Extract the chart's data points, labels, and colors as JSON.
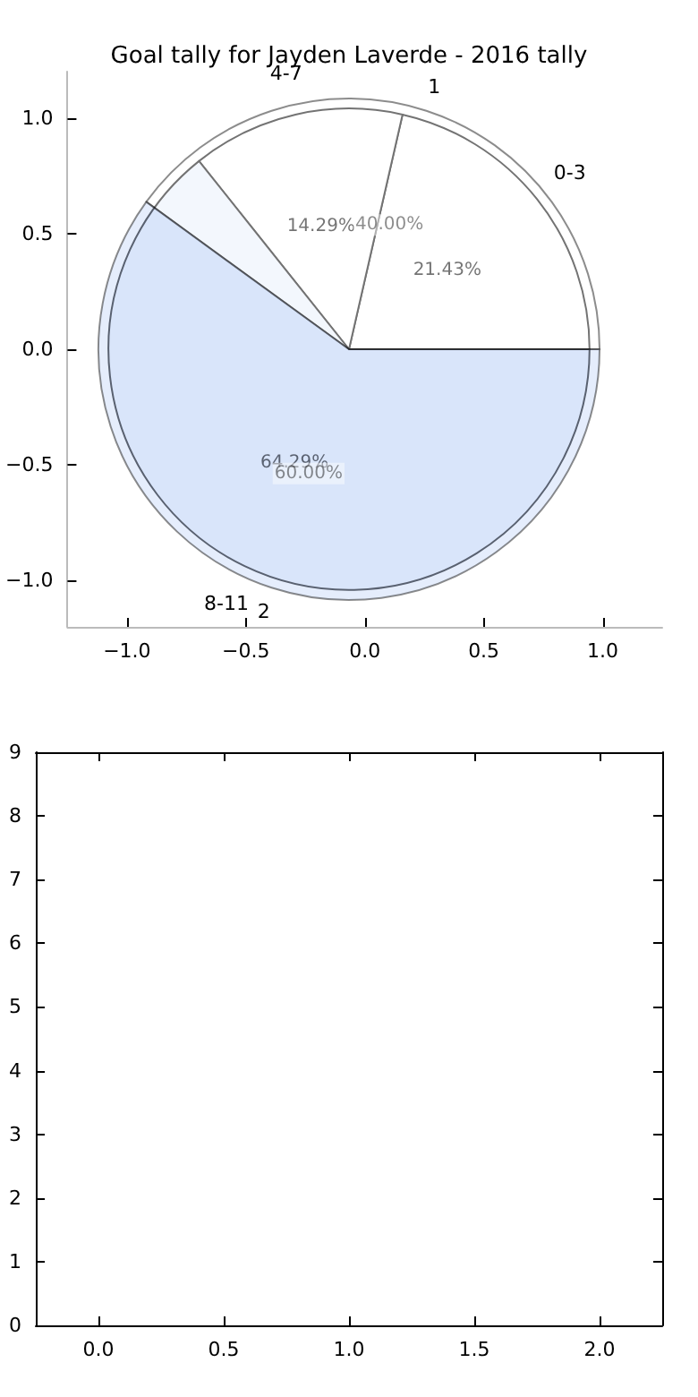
{
  "chart_data": [
    {
      "type": "pie",
      "title": "Goal tally for Jayden Laverde - 2016 tally",
      "categories": [
        "1",
        "2"
      ],
      "values": [
        40,
        60
      ],
      "colors": [
        "#ffffff",
        "#c6d8f8"
      ],
      "value_labels": [
        "40.00%",
        "60.00%"
      ]
    },
    {
      "type": "pie",
      "categories": [
        "0-3",
        "4-7",
        "8-11"
      ],
      "values": [
        21.43,
        14.29,
        64.29
      ],
      "colors": [
        "#ffffff",
        "#ffffff",
        "#eaf0fc"
      ],
      "value_labels": [
        "21.43%",
        "14.29%",
        "64.29%"
      ]
    },
    {
      "type": "scatter",
      "xlim": [
        -1.25,
        1.25
      ],
      "ylim": [
        -1.2,
        1.2
      ],
      "xticks": [
        {
          "value": -1,
          "label": "−1.0"
        },
        {
          "value": -0.5,
          "label": "−0.5"
        },
        {
          "value": 0,
          "label": "0.0"
        },
        {
          "value": 0.5,
          "label": "0.5"
        },
        {
          "value": 1,
          "label": "1.0"
        }
      ],
      "yticks": [
        {
          "value": -1,
          "label": "−1.0"
        },
        {
          "value": -0.5,
          "label": "−0.5"
        },
        {
          "value": 0,
          "label": "0.0"
        },
        {
          "value": 0.5,
          "label": "0.5"
        },
        {
          "value": 1,
          "label": "1.0"
        }
      ]
    },
    {
      "type": "scatter",
      "xlim": [
        -0.25,
        2.25
      ],
      "ylim": [
        0,
        9
      ],
      "xticks": [
        {
          "value": 0,
          "label": "0.0"
        },
        {
          "value": 0.5,
          "label": "0.5"
        },
        {
          "value": 1,
          "label": "1.0"
        },
        {
          "value": 1.5,
          "label": "1.5"
        },
        {
          "value": 2,
          "label": "2.0"
        }
      ],
      "yticks": [
        0,
        1,
        2,
        3,
        4,
        5,
        6,
        7,
        8,
        9
      ]
    }
  ]
}
